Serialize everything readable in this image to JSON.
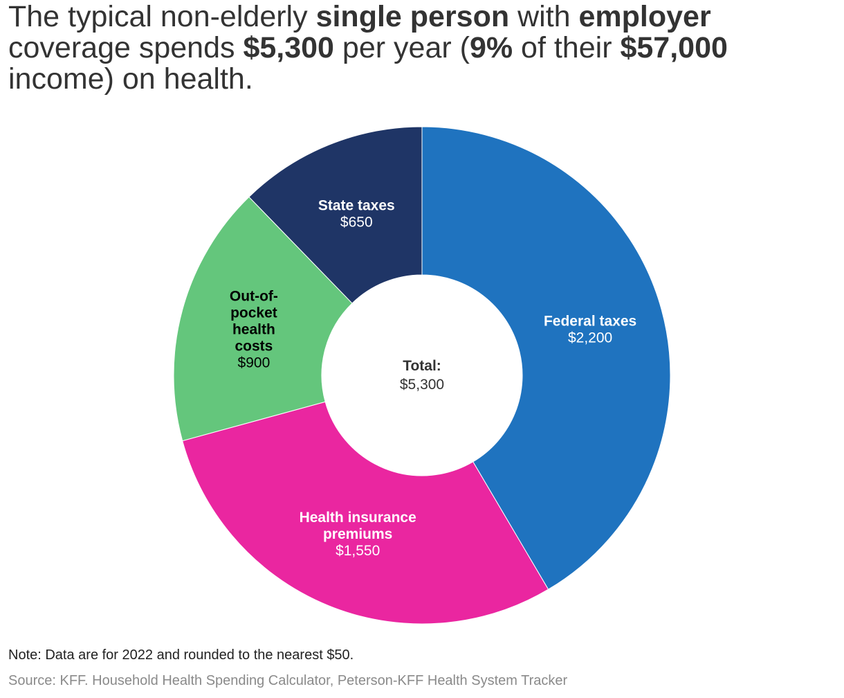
{
  "title": {
    "parts": [
      {
        "text": "The typical non-elderly ",
        "bold": false
      },
      {
        "text": "single person",
        "bold": true
      },
      {
        "text": " with ",
        "bold": false
      },
      {
        "text": "employer",
        "bold": true
      },
      {
        "text": " coverage spends ",
        "bold": false
      },
      {
        "text": "$5,300",
        "bold": true
      },
      {
        "text": " per year (",
        "bold": false
      },
      {
        "text": "9%",
        "bold": true
      },
      {
        "text": " of their ",
        "bold": false
      },
      {
        "text": "$57,000",
        "bold": true
      },
      {
        "text": " income) on health.",
        "bold": false
      }
    ]
  },
  "chart_data": {
    "type": "pie",
    "donut": true,
    "title": "",
    "center_label": {
      "name": "Total:",
      "value": "$5,300"
    },
    "slices": [
      {
        "name": [
          "Federal taxes"
        ],
        "value": 2200,
        "value_label": "$2,200",
        "color": "#1f73bf",
        "label_color": "#ffffff"
      },
      {
        "name": [
          "Health insurance",
          "premiums"
        ],
        "value": 1550,
        "value_label": "$1,550",
        "color": "#ea26a0",
        "label_color": "#ffffff"
      },
      {
        "name": [
          "Out-of-",
          "pocket",
          "health",
          "costs"
        ],
        "value": 900,
        "value_label": "$900",
        "color": "#64c67c",
        "label_color": "#000000"
      },
      {
        "name": [
          "State taxes"
        ],
        "value": 650,
        "value_label": "$650",
        "color": "#1f3566",
        "label_color": "#ffffff"
      }
    ]
  },
  "footer": {
    "note": "Note: Data are for 2022 and rounded to the nearest $50.",
    "source": "Source: KFF. Household Health Spending Calculator, Peterson-KFF Health System Tracker"
  }
}
